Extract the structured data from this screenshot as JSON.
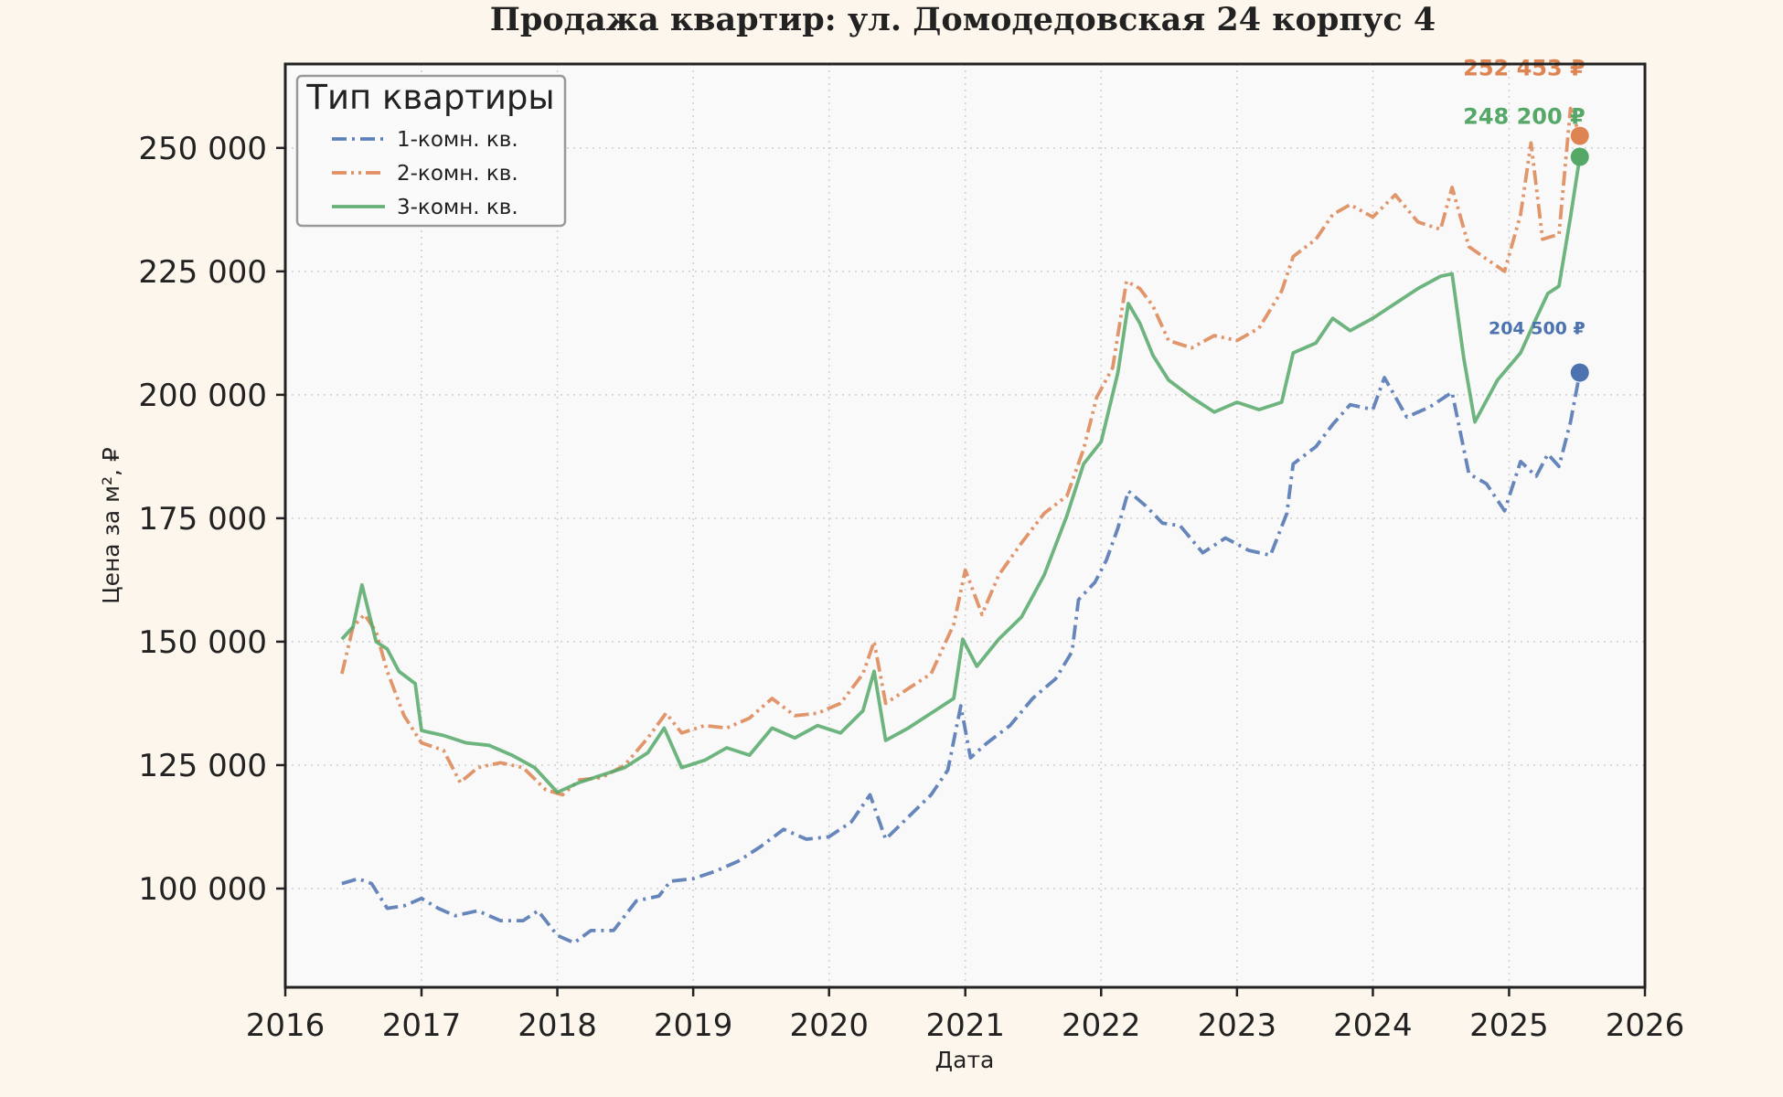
{
  "chart_data": {
    "type": "line",
    "title": "Продажа квартир: ул. Домодедовская 24 корпус 4",
    "xlabel": "Дата",
    "ylabel": "Цена за м², ₽",
    "xlim": [
      "2016-01-01",
      "2026-01-01"
    ],
    "ylim": [
      80000,
      267000
    ],
    "x_ticks": [
      "2016",
      "2017",
      "2018",
      "2019",
      "2020",
      "2021",
      "2022",
      "2023",
      "2024",
      "2025",
      "2026"
    ],
    "y_ticks": [
      100000,
      125000,
      150000,
      175000,
      200000,
      225000,
      250000
    ],
    "y_tick_labels": [
      "100 000",
      "125 000",
      "150 000",
      "175 000",
      "200 000",
      "225 000",
      "250 000"
    ],
    "grid": true,
    "legend": {
      "title": "Тип квартиры",
      "placement": "top-left"
    },
    "series": [
      {
        "name": "1-комн. кв.",
        "color": "#4c72b0",
        "dash": "dash-dot",
        "points": [
          [
            "2016-06-01",
            101000
          ],
          [
            "2016-07-15",
            102000
          ],
          [
            "2016-08-20",
            101000
          ],
          [
            "2016-10-01",
            96000
          ],
          [
            "2016-11-15",
            96500
          ],
          [
            "2017-01-01",
            98000
          ],
          [
            "2017-02-15",
            96000
          ],
          [
            "2017-04-01",
            94500
          ],
          [
            "2017-06-01",
            95500
          ],
          [
            "2017-08-01",
            93500
          ],
          [
            "2017-10-01",
            93500
          ],
          [
            "2017-11-10",
            95500
          ],
          [
            "2018-01-01",
            90500
          ],
          [
            "2018-02-15",
            89000
          ],
          [
            "2018-04-01",
            91500
          ],
          [
            "2018-06-01",
            91500
          ],
          [
            "2018-08-01",
            97500
          ],
          [
            "2018-10-01",
            98500
          ],
          [
            "2018-11-01",
            101500
          ],
          [
            "2019-01-01",
            102000
          ],
          [
            "2019-03-01",
            103500
          ],
          [
            "2019-05-01",
            105500
          ],
          [
            "2019-07-01",
            108500
          ],
          [
            "2019-09-01",
            112000
          ],
          [
            "2019-11-01",
            110000
          ],
          [
            "2020-01-01",
            110500
          ],
          [
            "2020-03-01",
            113500
          ],
          [
            "2020-04-20",
            119000
          ],
          [
            "2020-06-01",
            110000
          ],
          [
            "2020-08-01",
            114500
          ],
          [
            "2020-10-01",
            119000
          ],
          [
            "2020-11-15",
            124000
          ],
          [
            "2020-12-20",
            137000
          ],
          [
            "2021-01-15",
            126500
          ],
          [
            "2021-03-01",
            129500
          ],
          [
            "2021-05-01",
            133000
          ],
          [
            "2021-07-01",
            138500
          ],
          [
            "2021-09-01",
            142500
          ],
          [
            "2021-10-15",
            148000
          ],
          [
            "2021-11-01",
            158500
          ],
          [
            "2021-12-15",
            162000
          ],
          [
            "2022-01-15",
            166500
          ],
          [
            "2022-02-15",
            173000
          ],
          [
            "2022-03-15",
            180500
          ],
          [
            "2022-05-01",
            177500
          ],
          [
            "2022-06-15",
            174000
          ],
          [
            "2022-08-01",
            173500
          ],
          [
            "2022-10-01",
            168000
          ],
          [
            "2022-12-01",
            171000
          ],
          [
            "2023-02-01",
            168500
          ],
          [
            "2023-04-01",
            167500
          ],
          [
            "2023-05-15",
            176000
          ],
          [
            "2023-06-01",
            186000
          ],
          [
            "2023-08-01",
            189500
          ],
          [
            "2023-09-15",
            194000
          ],
          [
            "2023-11-01",
            198000
          ],
          [
            "2024-01-01",
            197000
          ],
          [
            "2024-02-01",
            203500
          ],
          [
            "2024-04-01",
            195500
          ],
          [
            "2024-06-01",
            197500
          ],
          [
            "2024-08-01",
            200500
          ],
          [
            "2024-09-15",
            184000
          ],
          [
            "2024-11-01",
            182000
          ],
          [
            "2024-12-20",
            176500
          ],
          [
            "2025-02-01",
            186500
          ],
          [
            "2025-03-15",
            183500
          ],
          [
            "2025-04-15",
            188000
          ],
          [
            "2025-05-15",
            185500
          ],
          [
            "2025-06-15",
            194500
          ],
          [
            "2025-07-10",
            204500
          ]
        ],
        "last_value_label": "204 500 ₽"
      },
      {
        "name": "2-комн. кв.",
        "color": "#dd8452",
        "dash": "dash-dot-dot",
        "points": [
          [
            "2016-06-01",
            143500
          ],
          [
            "2016-07-01",
            153000
          ],
          [
            "2016-08-01",
            155500
          ],
          [
            "2016-09-01",
            152000
          ],
          [
            "2016-10-01",
            144000
          ],
          [
            "2016-11-15",
            135000
          ],
          [
            "2017-01-01",
            129500
          ],
          [
            "2017-03-01",
            128000
          ],
          [
            "2017-04-15",
            121500
          ],
          [
            "2017-06-01",
            124500
          ],
          [
            "2017-08-01",
            125500
          ],
          [
            "2017-10-01",
            124500
          ],
          [
            "2017-12-01",
            120000
          ],
          [
            "2018-01-15",
            119000
          ],
          [
            "2018-03-01",
            122000
          ],
          [
            "2018-05-01",
            122500
          ],
          [
            "2018-07-01",
            125000
          ],
          [
            "2018-09-01",
            130500
          ],
          [
            "2018-10-20",
            135500
          ],
          [
            "2018-12-01",
            131500
          ],
          [
            "2019-02-01",
            133000
          ],
          [
            "2019-04-01",
            132500
          ],
          [
            "2019-06-01",
            134500
          ],
          [
            "2019-08-01",
            138500
          ],
          [
            "2019-10-01",
            135000
          ],
          [
            "2019-12-01",
            135500
          ],
          [
            "2020-02-01",
            137500
          ],
          [
            "2020-04-01",
            143500
          ],
          [
            "2020-05-01",
            150000
          ],
          [
            "2020-06-01",
            137500
          ],
          [
            "2020-08-01",
            140500
          ],
          [
            "2020-10-01",
            143500
          ],
          [
            "2020-12-01",
            153500
          ],
          [
            "2021-01-01",
            164500
          ],
          [
            "2021-02-15",
            155500
          ],
          [
            "2021-04-01",
            163500
          ],
          [
            "2021-06-01",
            170000
          ],
          [
            "2021-08-01",
            176000
          ],
          [
            "2021-10-01",
            179500
          ],
          [
            "2021-11-15",
            189000
          ],
          [
            "2021-12-20",
            199500
          ],
          [
            "2022-02-01",
            205500
          ],
          [
            "2022-03-10",
            223000
          ],
          [
            "2022-04-15",
            221500
          ],
          [
            "2022-05-20",
            218000
          ],
          [
            "2022-07-01",
            211000
          ],
          [
            "2022-09-01",
            209500
          ],
          [
            "2022-11-01",
            212000
          ],
          [
            "2023-01-01",
            211000
          ],
          [
            "2023-03-01",
            213500
          ],
          [
            "2023-05-01",
            221000
          ],
          [
            "2023-06-01",
            228000
          ],
          [
            "2023-08-01",
            231500
          ],
          [
            "2023-09-15",
            236500
          ],
          [
            "2023-11-01",
            238500
          ],
          [
            "2024-01-01",
            236000
          ],
          [
            "2024-03-01",
            240500
          ],
          [
            "2024-05-01",
            235000
          ],
          [
            "2024-07-01",
            233500
          ],
          [
            "2024-08-01",
            242000
          ],
          [
            "2024-09-15",
            230000
          ],
          [
            "2024-11-01",
            227500
          ],
          [
            "2024-12-20",
            225000
          ],
          [
            "2025-02-01",
            236500
          ],
          [
            "2025-03-01",
            251000
          ],
          [
            "2025-04-01",
            231500
          ],
          [
            "2025-05-15",
            232500
          ],
          [
            "2025-06-15",
            258000
          ],
          [
            "2025-07-10",
            252453
          ]
        ],
        "last_value_label": "252 453 ₽"
      },
      {
        "name": "3-комн. кв.",
        "color": "#55a868",
        "dash": "solid",
        "points": [
          [
            "2016-06-01",
            150500
          ],
          [
            "2016-07-01",
            153000
          ],
          [
            "2016-07-25",
            161500
          ],
          [
            "2016-09-01",
            150000
          ],
          [
            "2016-10-01",
            148500
          ],
          [
            "2016-11-01",
            144000
          ],
          [
            "2016-12-15",
            141500
          ],
          [
            "2017-01-01",
            132000
          ],
          [
            "2017-03-01",
            131000
          ],
          [
            "2017-05-01",
            129500
          ],
          [
            "2017-07-01",
            129000
          ],
          [
            "2017-09-01",
            127000
          ],
          [
            "2017-11-01",
            124500
          ],
          [
            "2018-01-01",
            119500
          ],
          [
            "2018-03-01",
            121500
          ],
          [
            "2018-05-01",
            123000
          ],
          [
            "2018-07-01",
            124500
          ],
          [
            "2018-09-01",
            127500
          ],
          [
            "2018-10-15",
            132500
          ],
          [
            "2018-12-01",
            124500
          ],
          [
            "2019-02-01",
            126000
          ],
          [
            "2019-04-01",
            128500
          ],
          [
            "2019-06-01",
            127000
          ],
          [
            "2019-08-01",
            132500
          ],
          [
            "2019-10-01",
            130500
          ],
          [
            "2019-12-01",
            133000
          ],
          [
            "2020-02-01",
            131500
          ],
          [
            "2020-04-01",
            136000
          ],
          [
            "2020-05-01",
            144000
          ],
          [
            "2020-06-01",
            130000
          ],
          [
            "2020-08-01",
            132500
          ],
          [
            "2020-10-01",
            135500
          ],
          [
            "2020-12-01",
            138500
          ],
          [
            "2020-12-25",
            150500
          ],
          [
            "2021-02-01",
            145000
          ],
          [
            "2021-04-01",
            150500
          ],
          [
            "2021-06-01",
            155000
          ],
          [
            "2021-08-01",
            163500
          ],
          [
            "2021-10-01",
            175500
          ],
          [
            "2021-11-15",
            186000
          ],
          [
            "2022-01-01",
            190500
          ],
          [
            "2022-02-15",
            204500
          ],
          [
            "2022-03-15",
            218500
          ],
          [
            "2022-04-15",
            214500
          ],
          [
            "2022-05-20",
            208000
          ],
          [
            "2022-07-01",
            203000
          ],
          [
            "2022-09-01",
            199500
          ],
          [
            "2022-11-01",
            196500
          ],
          [
            "2023-01-01",
            198500
          ],
          [
            "2023-03-01",
            197000
          ],
          [
            "2023-05-01",
            198500
          ],
          [
            "2023-06-01",
            208500
          ],
          [
            "2023-08-01",
            210500
          ],
          [
            "2023-09-15",
            215500
          ],
          [
            "2023-11-01",
            213000
          ],
          [
            "2024-01-01",
            215500
          ],
          [
            "2024-03-01",
            218500
          ],
          [
            "2024-05-01",
            221500
          ],
          [
            "2024-07-01",
            224000
          ],
          [
            "2024-08-01",
            224500
          ],
          [
            "2024-09-01",
            207500
          ],
          [
            "2024-10-01",
            194500
          ],
          [
            "2024-12-01",
            203000
          ],
          [
            "2025-02-01",
            208500
          ],
          [
            "2025-03-15",
            215500
          ],
          [
            "2025-04-15",
            220500
          ],
          [
            "2025-05-15",
            222000
          ],
          [
            "2025-06-15",
            236000
          ],
          [
            "2025-07-10",
            248200
          ]
        ],
        "last_value_label": "248 200 ₽"
      }
    ]
  }
}
